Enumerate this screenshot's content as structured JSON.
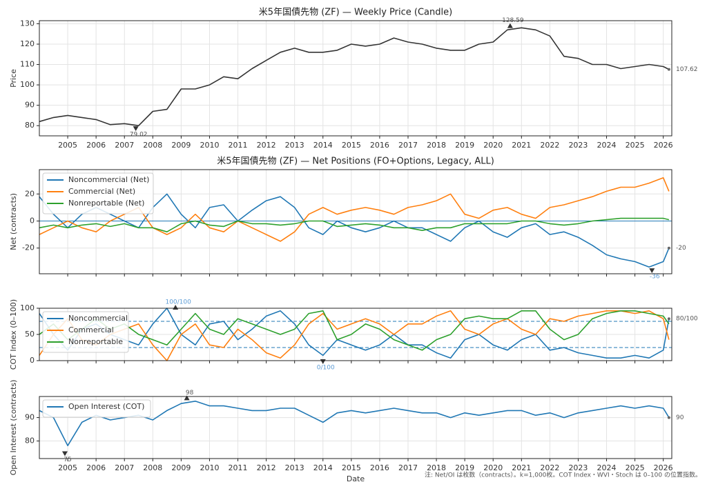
{
  "chart_data": [
    {
      "type": "line",
      "title": "米5年国債先物 (ZF) — Weekly Price (Candle)",
      "y_label": "Price",
      "x": [
        2004,
        2004.5,
        2005,
        2005.5,
        2006,
        2006.5,
        2007,
        2007.5,
        2008,
        2008.5,
        2009,
        2009.5,
        2010,
        2010.5,
        2011,
        2011.5,
        2012,
        2012.5,
        2013,
        2013.5,
        2014,
        2014.5,
        2015,
        2015.5,
        2016,
        2016.5,
        2017,
        2017.5,
        2018,
        2018.5,
        2019,
        2019.5,
        2020,
        2020.5,
        2021,
        2021.5,
        2022,
        2022.5,
        2023,
        2023.5,
        2024,
        2024.5,
        2025,
        2025.5,
        2026,
        2026.2
      ],
      "series": [
        {
          "color": "#333333",
          "values": [
            82,
            84,
            85,
            84,
            83,
            80.5,
            81,
            80,
            87,
            88,
            98,
            98,
            100,
            104,
            103,
            108,
            112,
            116,
            118,
            116,
            116,
            117,
            120,
            119,
            120,
            123,
            121,
            120,
            118,
            117,
            117,
            120,
            121,
            127,
            128,
            127,
            124,
            114,
            113,
            110,
            110,
            108,
            109,
            110,
            109,
            107.62
          ]
        }
      ],
      "annotations": [
        {
          "x": 2020.6,
          "value": 128.59
        },
        {
          "x": 2007.4,
          "value": 79.02
        },
        {
          "x": 2026.2,
          "value": 107.62
        }
      ],
      "xlim": [
        2004,
        2026.3
      ],
      "ylim": [
        75,
        131.5
      ],
      "xticks": [
        2005,
        2006,
        2007,
        2008,
        2009,
        2010,
        2011,
        2012,
        2013,
        2014,
        2015,
        2016,
        2017,
        2018,
        2019,
        2020,
        2021,
        2022,
        2023,
        2024,
        2025,
        2026
      ],
      "yticks": [
        80,
        90,
        100,
        110,
        120,
        130
      ],
      "grid": true
    },
    {
      "type": "line",
      "title": "米5年国債先物 (ZF) — Net Positions (FO+Options, Legacy, ALL)",
      "y_label": "Net (contracts)",
      "x": [
        2004,
        2004.5,
        2005,
        2005.5,
        2006,
        2006.5,
        2007,
        2007.5,
        2008,
        2008.5,
        2009,
        2009.5,
        2010,
        2010.5,
        2011,
        2011.5,
        2012,
        2012.5,
        2013,
        2013.5,
        2014,
        2014.5,
        2015,
        2015.5,
        2016,
        2016.5,
        2017,
        2017.5,
        2018,
        2018.5,
        2019,
        2019.5,
        2020,
        2020.5,
        2021,
        2021.5,
        2022,
        2022.5,
        2023,
        2023.5,
        2024,
        2024.5,
        2025,
        2025.5,
        2026,
        2026.2
      ],
      "series": [
        {
          "name": "Noncommercial (Net)",
          "color": "#1f77b4",
          "values": [
            18,
            5,
            -5,
            5,
            10,
            5,
            0,
            -5,
            10,
            20,
            5,
            -5,
            10,
            12,
            0,
            8,
            15,
            18,
            10,
            -5,
            -10,
            0,
            -5,
            -8,
            -5,
            0,
            -5,
            -5,
            -10,
            -15,
            -5,
            0,
            -8,
            -12,
            -5,
            -2,
            -10,
            -8,
            -12,
            -18,
            -25,
            -28,
            -30,
            -34,
            -30,
            -20
          ]
        },
        {
          "name": "Commercial (Net)",
          "color": "#ff7f0e",
          "values": [
            -10,
            -5,
            0,
            -5,
            -8,
            0,
            5,
            10,
            -5,
            -10,
            -5,
            5,
            -5,
            -8,
            0,
            -5,
            -10,
            -15,
            -8,
            5,
            10,
            5,
            8,
            10,
            8,
            5,
            10,
            12,
            15,
            20,
            5,
            2,
            8,
            10,
            5,
            2,
            10,
            12,
            15,
            18,
            22,
            25,
            25,
            28,
            32,
            22
          ]
        },
        {
          "name": "Nonreportable (Net)",
          "color": "#2ca02c",
          "values": [
            -5,
            -3,
            -5,
            -3,
            -2,
            -4,
            -2,
            -5,
            -5,
            -8,
            -2,
            0,
            -3,
            -4,
            0,
            -2,
            -2,
            -3,
            -2,
            0,
            0,
            -4,
            -3,
            -2,
            -3,
            -5,
            -5,
            -7,
            -5,
            -5,
            -2,
            -2,
            -2,
            -2,
            0,
            0,
            -2,
            -3,
            -2,
            0,
            1,
            2,
            2,
            2,
            2,
            1
          ]
        }
      ],
      "annotations": [
        {
          "x": 2026.2,
          "value": -20
        },
        {
          "x": 2025.6,
          "value": -36
        }
      ],
      "hlines": [
        0
      ],
      "hline_dashed": false,
      "legend": "upper left",
      "xlim": [
        2004,
        2026.3
      ],
      "ylim": [
        -39,
        38
      ],
      "xticks": [
        2005,
        2006,
        2007,
        2008,
        2009,
        2010,
        2011,
        2012,
        2013,
        2014,
        2015,
        2016,
        2017,
        2018,
        2019,
        2020,
        2021,
        2022,
        2023,
        2024,
        2025,
        2026
      ],
      "xticklabels": false,
      "yticks": [
        -20,
        0,
        20
      ],
      "grid": true
    },
    {
      "type": "line",
      "y_label": "COT Index (0–100)",
      "x": [
        2004,
        2004.5,
        2005,
        2005.5,
        2006,
        2006.5,
        2007,
        2007.5,
        2008,
        2008.5,
        2009,
        2009.5,
        2010,
        2010.5,
        2011,
        2011.5,
        2012,
        2012.5,
        2013,
        2013.5,
        2014,
        2014.5,
        2015,
        2015.5,
        2016,
        2016.5,
        2017,
        2017.5,
        2018,
        2018.5,
        2019,
        2019.5,
        2020,
        2020.5,
        2021,
        2021.5,
        2022,
        2022.5,
        2023,
        2023.5,
        2024,
        2024.5,
        2025,
        2025.5,
        2026,
        2026.2
      ],
      "series": [
        {
          "name": "Noncommercial",
          "color": "#1f77b4",
          "values": [
            90,
            50,
            20,
            60,
            70,
            50,
            40,
            30,
            70,
            100,
            50,
            30,
            70,
            75,
            40,
            60,
            85,
            95,
            70,
            30,
            10,
            40,
            30,
            20,
            30,
            50,
            30,
            30,
            15,
            5,
            40,
            50,
            30,
            20,
            40,
            50,
            20,
            25,
            15,
            10,
            5,
            5,
            10,
            5,
            20,
            80
          ]
        },
        {
          "name": "Commercial",
          "color": "#ff7f0e",
          "values": [
            10,
            50,
            80,
            40,
            30,
            50,
            60,
            70,
            30,
            0,
            50,
            70,
            30,
            25,
            60,
            40,
            15,
            5,
            30,
            70,
            90,
            60,
            70,
            80,
            70,
            50,
            70,
            70,
            85,
            95,
            60,
            50,
            70,
            80,
            60,
            50,
            80,
            75,
            85,
            90,
            95,
            95,
            90,
            95,
            80,
            40
          ]
        },
        {
          "name": "Nonreportable",
          "color": "#2ca02c",
          "values": [
            50,
            70,
            40,
            60,
            80,
            60,
            70,
            50,
            40,
            30,
            60,
            90,
            60,
            50,
            80,
            70,
            60,
            50,
            60,
            90,
            95,
            40,
            50,
            70,
            60,
            40,
            30,
            20,
            40,
            50,
            80,
            85,
            80,
            80,
            95,
            95,
            60,
            40,
            50,
            80,
            90,
            95,
            95,
            90,
            85,
            70
          ]
        }
      ],
      "annotations": [
        {
          "x": 2008.8,
          "value": 100,
          "label": "100/100"
        },
        {
          "x": 2014.0,
          "value": 0,
          "label": "0/100"
        },
        {
          "x": 2026.2,
          "value": 80,
          "label": "80/100"
        }
      ],
      "hlines": [
        25,
        75
      ],
      "hline_dashed": true,
      "legend": "upper left",
      "xlim": [
        2004,
        2026.3
      ],
      "ylim": [
        0,
        100
      ],
      "xticks": [
        2005,
        2006,
        2007,
        2008,
        2009,
        2010,
        2011,
        2012,
        2013,
        2014,
        2015,
        2016,
        2017,
        2018,
        2019,
        2020,
        2021,
        2022,
        2023,
        2024,
        2025,
        2026
      ],
      "xticklabels": false,
      "yticks": [
        0,
        50,
        100
      ],
      "grid": true
    },
    {
      "type": "line",
      "y_label": "Open Interest (contracts)",
      "x_label": "Date",
      "x": [
        2004,
        2004.5,
        2005,
        2005.5,
        2006,
        2006.5,
        2007,
        2007.5,
        2008,
        2008.5,
        2009,
        2009.5,
        2010,
        2010.5,
        2011,
        2011.5,
        2012,
        2012.5,
        2013,
        2013.5,
        2014,
        2014.5,
        2015,
        2015.5,
        2016,
        2016.5,
        2017,
        2017.5,
        2018,
        2018.5,
        2019,
        2019.5,
        2020,
        2020.5,
        2021,
        2021.5,
        2022,
        2022.5,
        2023,
        2023.5,
        2024,
        2024.5,
        2025,
        2025.5,
        2026,
        2026.2
      ],
      "series": [
        {
          "name": "Open Interest (COT)",
          "color": "#1f77b4",
          "values": [
            93,
            90,
            78,
            88,
            91,
            89,
            90,
            91,
            89,
            93,
            96,
            97,
            95,
            95,
            94,
            93,
            93,
            94,
            94,
            91,
            88,
            92,
            93,
            92,
            93,
            94,
            93,
            92,
            92,
            90,
            92,
            91,
            92,
            93,
            93,
            91,
            92,
            90,
            92,
            93,
            94,
            95,
            94,
            95,
            94,
            90
          ]
        }
      ],
      "annotations": [
        {
          "x": 2009.2,
          "value": 98
        },
        {
          "x": 2004.9,
          "value": 75
        },
        {
          "x": 2026.2,
          "value": 90
        }
      ],
      "legend": "upper left",
      "xlim": [
        2004,
        2026.3
      ],
      "ylim": [
        72.5,
        99
      ],
      "xticks": [
        2005,
        2006,
        2007,
        2008,
        2009,
        2010,
        2011,
        2012,
        2013,
        2014,
        2015,
        2016,
        2017,
        2018,
        2019,
        2020,
        2021,
        2022,
        2023,
        2024,
        2025,
        2026
      ],
      "yticks": [
        80,
        90
      ],
      "grid": true
    }
  ],
  "footnote": "注: Net/OI は枚数（contracts）。k=1,000枚。COT Index・WVI・Stoch は 0–100 の位置指数。"
}
